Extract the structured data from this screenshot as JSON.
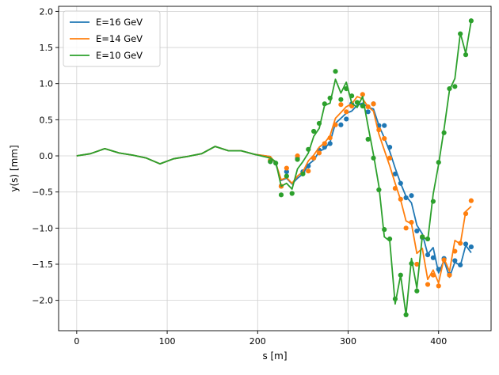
{
  "chart_data": {
    "type": "line",
    "title": "",
    "xlabel": "s [m]",
    "ylabel": "y(s) [mm]",
    "xlim": [
      -20,
      458
    ],
    "ylim": [
      -2.42,
      2.07
    ],
    "xticks": [
      0,
      100,
      200,
      300,
      400
    ],
    "xtick_labels": [
      "0",
      "100",
      "200",
      "300",
      "400"
    ],
    "yticks": [
      -2.0,
      -1.5,
      -1.0,
      -0.5,
      0.0,
      0.5,
      1.0,
      1.5,
      2.0
    ],
    "ytick_labels": [
      "−2.0",
      "−1.5",
      "−1.0",
      "−0.5",
      "0.0",
      "0.5",
      "1.0",
      "1.5",
      "2.0"
    ],
    "grid": true,
    "legend_position": "top-left",
    "colors": {
      "E16": "#1f77b4",
      "E14": "#ff7f0e",
      "E10": "#2ca02c",
      "grid": "#d0d0d0"
    },
    "series": [
      {
        "name": "E=16 GeV",
        "color": "#1f77b4",
        "x": [
          0,
          15,
          31,
          47,
          62,
          77,
          92,
          107,
          122,
          138,
          153,
          168,
          182,
          197,
          214,
          220,
          226,
          232,
          238,
          244,
          250,
          256,
          262,
          268,
          274,
          280,
          286,
          292,
          298,
          304,
          310,
          316,
          322,
          328,
          334,
          340,
          346,
          352,
          358,
          364,
          370,
          376,
          382,
          388,
          394,
          400,
          406,
          412,
          418,
          424,
          430,
          436
        ],
        "y": [
          0,
          0.03,
          0.1,
          0.04,
          0.01,
          -0.03,
          -0.11,
          -0.04,
          -0.01,
          0.03,
          0.13,
          0.07,
          0.07,
          0.02,
          -0.01,
          -0.11,
          -0.34,
          -0.31,
          -0.39,
          -0.31,
          -0.25,
          -0.12,
          -0.06,
          0.06,
          0.1,
          0.19,
          0.45,
          0.52,
          0.59,
          0.62,
          0.7,
          0.73,
          0.67,
          0.65,
          0.42,
          0.25,
          0.06,
          -0.17,
          -0.38,
          -0.56,
          -0.65,
          -0.96,
          -1.08,
          -1.36,
          -1.27,
          -1.62,
          -1.45,
          -1.68,
          -1.47,
          -1.52,
          -1.24,
          -1.34
        ],
        "points_x": [
          214,
          226,
          232,
          244,
          250,
          256,
          262,
          268,
          274,
          280,
          292,
          298,
          304,
          316,
          322,
          328,
          334,
          340,
          346,
          352,
          358,
          364,
          370,
          376,
          382,
          388,
          394,
          400,
          406,
          412,
          418,
          424,
          430,
          436
        ],
        "points_y": [
          -0.08,
          -0.42,
          -0.22,
          -0.03,
          -0.22,
          -0.14,
          -0.03,
          0.08,
          0.12,
          0.17,
          0.43,
          0.51,
          0.72,
          0.7,
          0.61,
          0.72,
          0.42,
          0.42,
          0.12,
          -0.25,
          -0.38,
          -0.58,
          -0.55,
          -1.04,
          -1.13,
          -1.37,
          -1.41,
          -1.57,
          -1.42,
          -1.64,
          -1.45,
          -1.51,
          -1.22,
          -1.26
        ]
      },
      {
        "name": "E=14 GeV",
        "color": "#ff7f0e",
        "x": [
          0,
          15,
          31,
          47,
          62,
          77,
          92,
          107,
          122,
          138,
          153,
          168,
          182,
          197,
          214,
          220,
          226,
          232,
          238,
          244,
          250,
          256,
          262,
          268,
          274,
          280,
          286,
          292,
          298,
          304,
          310,
          316,
          322,
          328,
          334,
          340,
          346,
          352,
          358,
          364,
          370,
          376,
          382,
          388,
          394,
          400,
          406,
          412,
          418,
          424,
          430,
          436
        ],
        "y": [
          0,
          0.03,
          0.1,
          0.04,
          0.01,
          -0.03,
          -0.11,
          -0.04,
          -0.01,
          0.03,
          0.13,
          0.07,
          0.07,
          0.02,
          -0.01,
          -0.1,
          -0.33,
          -0.3,
          -0.38,
          -0.28,
          -0.22,
          -0.07,
          0.01,
          0.12,
          0.18,
          0.28,
          0.52,
          0.6,
          0.68,
          0.72,
          0.82,
          0.79,
          0.68,
          0.62,
          0.3,
          0.08,
          -0.14,
          -0.38,
          -0.61,
          -0.9,
          -0.94,
          -1.35,
          -1.28,
          -1.71,
          -1.58,
          -1.76,
          -1.42,
          -1.6,
          -1.17,
          -1.22,
          -0.77,
          -0.7
        ],
        "points_x": [
          214,
          226,
          232,
          244,
          256,
          262,
          268,
          274,
          280,
          286,
          292,
          298,
          304,
          316,
          322,
          328,
          334,
          340,
          346,
          352,
          358,
          364,
          370,
          376,
          382,
          388,
          394,
          400,
          406,
          412,
          418,
          424,
          430,
          436
        ],
        "points_y": [
          -0.06,
          -0.42,
          -0.17,
          0,
          -0.21,
          -0.03,
          0.04,
          0.17,
          0.25,
          0.43,
          0.71,
          0.61,
          0.69,
          0.85,
          0.68,
          0.72,
          0.36,
          0.24,
          -0.03,
          -0.45,
          -0.6,
          -1.0,
          -0.92,
          -1.5,
          -1.12,
          -1.78,
          -1.65,
          -1.8,
          -1.44,
          -1.65,
          -1.32,
          -1.21,
          -0.8,
          -0.62
        ]
      },
      {
        "name": "E=10 GeV",
        "color": "#2ca02c",
        "x": [
          0,
          15,
          31,
          47,
          62,
          77,
          92,
          107,
          122,
          138,
          153,
          168,
          182,
          197,
          214,
          220,
          226,
          232,
          238,
          244,
          250,
          256,
          262,
          268,
          274,
          280,
          286,
          292,
          298,
          304,
          310,
          316,
          322,
          328,
          334,
          340,
          346,
          352,
          358,
          364,
          370,
          376,
          382,
          388,
          394,
          400,
          406,
          412,
          418,
          424,
          430,
          436
        ],
        "y": [
          0,
          0.03,
          0.1,
          0.04,
          0.01,
          -0.03,
          -0.11,
          -0.04,
          -0.01,
          0.03,
          0.13,
          0.07,
          0.07,
          0.02,
          -0.03,
          -0.08,
          -0.42,
          -0.38,
          -0.46,
          -0.18,
          -0.08,
          0.04,
          0.27,
          0.38,
          0.7,
          0.73,
          1.06,
          0.87,
          1.02,
          0.73,
          0.67,
          0.82,
          0.41,
          0.02,
          -0.42,
          -1.12,
          -1.18,
          -2.05,
          -1.65,
          -2.2,
          -1.42,
          -1.83,
          -1.11,
          -1.17,
          -0.53,
          -0.12,
          0.37,
          0.91,
          1.07,
          1.7,
          1.42,
          1.87
        ],
        "points_x": [
          214,
          220,
          226,
          232,
          238,
          244,
          250,
          256,
          262,
          268,
          274,
          280,
          286,
          292,
          298,
          304,
          310,
          316,
          322,
          328,
          334,
          340,
          346,
          352,
          358,
          364,
          370,
          376,
          382,
          388,
          394,
          400,
          406,
          412,
          418,
          424,
          430,
          436
        ],
        "points_y": [
          -0.08,
          -0.1,
          -0.54,
          -0.28,
          -0.52,
          -0.05,
          -0.25,
          0.09,
          0.34,
          0.45,
          0.72,
          0.8,
          1.17,
          0.78,
          0.93,
          0.83,
          0.74,
          0.69,
          0.23,
          -0.03,
          -0.47,
          -1.02,
          -1.15,
          -1.98,
          -1.65,
          -2.2,
          -1.49,
          -1.87,
          -1.12,
          -1.15,
          -0.63,
          -0.09,
          0.32,
          0.93,
          0.96,
          1.69,
          1.4,
          1.87
        ]
      }
    ]
  }
}
